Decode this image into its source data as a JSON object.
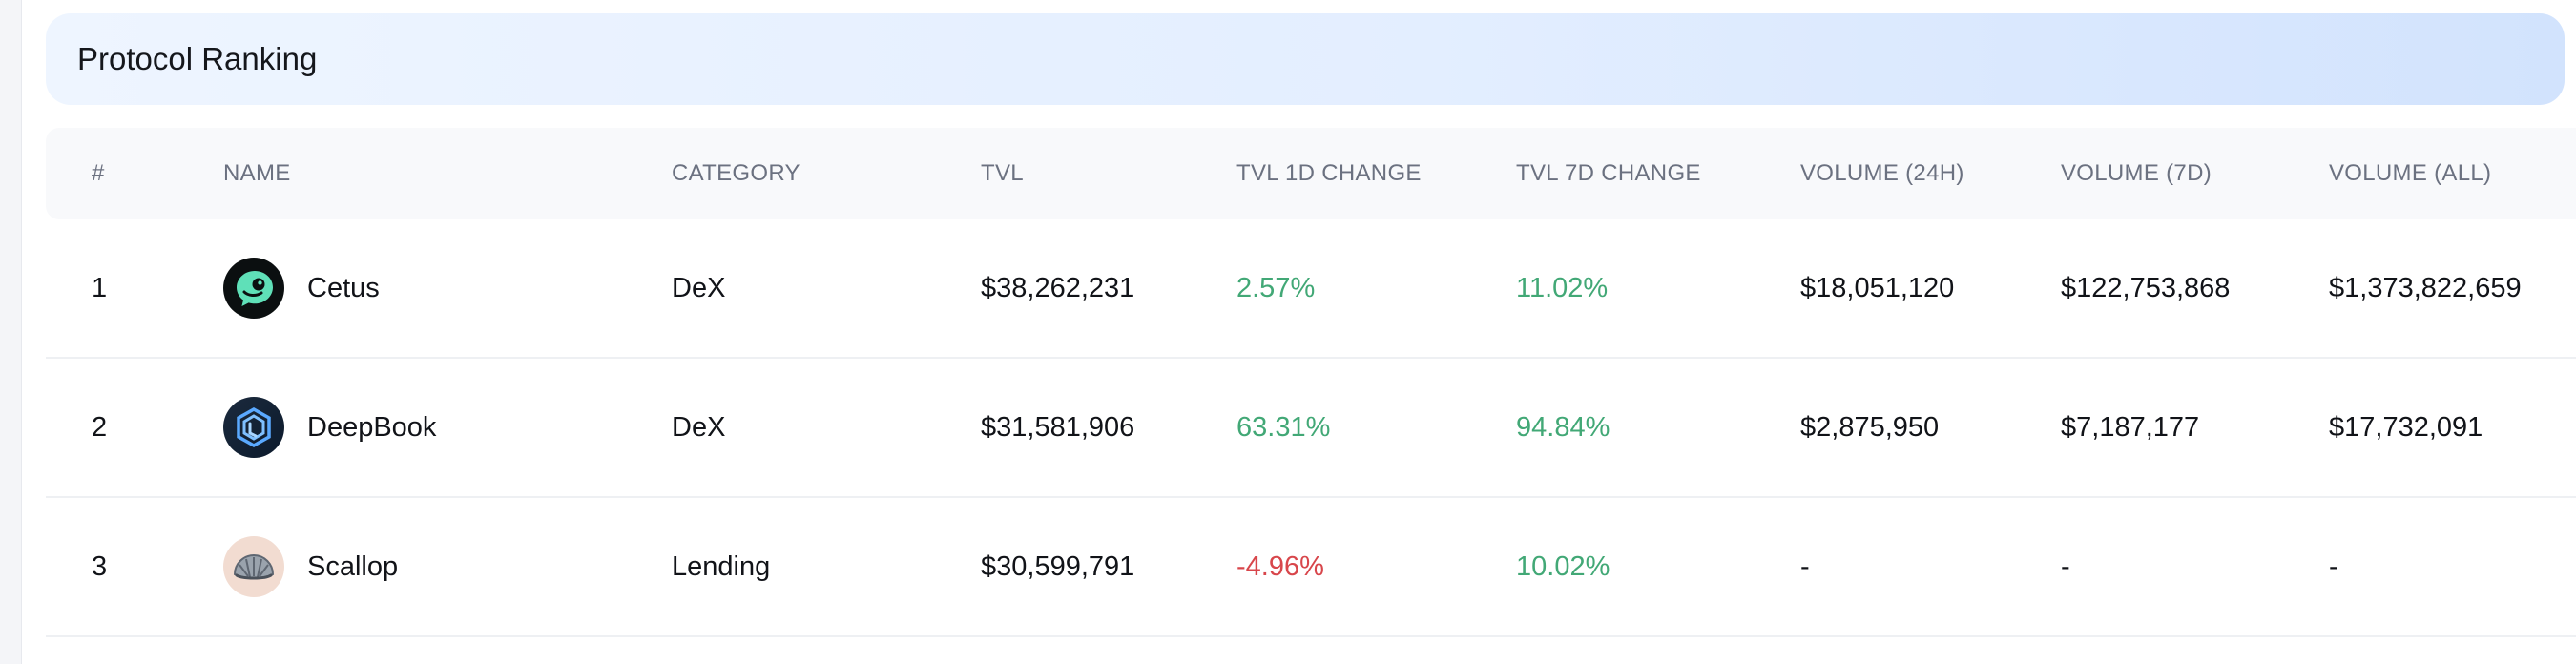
{
  "header": {
    "title": "Protocol Ranking"
  },
  "table": {
    "columns": [
      "#",
      "NAME",
      "CATEGORY",
      "TVL",
      "TVL 1D CHANGE",
      "TVL 7D CHANGE",
      "VOLUME (24H)",
      "VOLUME (7D)",
      "VOLUME (ALL)"
    ],
    "rows": [
      {
        "rank": "1",
        "name": "Cetus",
        "logo_icon": "cetus-logo-icon",
        "category": "DeX",
        "tvl": "$38,262,231",
        "tvl_1d": "2.57%",
        "tvl_1d_dir": "up",
        "tvl_7d": "11.02%",
        "tvl_7d_dir": "up",
        "vol_24h": "$18,051,120",
        "vol_7d": "$122,753,868",
        "vol_all": "$1,373,822,659"
      },
      {
        "rank": "2",
        "name": "DeepBook",
        "logo_icon": "deepbook-logo-icon",
        "category": "DeX",
        "tvl": "$31,581,906",
        "tvl_1d": "63.31%",
        "tvl_1d_dir": "up",
        "tvl_7d": "94.84%",
        "tvl_7d_dir": "up",
        "vol_24h": "$2,875,950",
        "vol_7d": "$7,187,177",
        "vol_all": "$17,732,091"
      },
      {
        "rank": "3",
        "name": "Scallop",
        "logo_icon": "scallop-logo-icon",
        "category": "Lending",
        "tvl": "$30,599,791",
        "tvl_1d": "-4.96%",
        "tvl_1d_dir": "down",
        "tvl_7d": "10.02%",
        "tvl_7d_dir": "up",
        "vol_24h": "-",
        "vol_7d": "-",
        "vol_all": "-"
      }
    ]
  },
  "colors": {
    "positive": "#42a876",
    "negative": "#d8464b",
    "header_gradient_start": "#eef5ff",
    "header_gradient_end": "#d2e3fd"
  }
}
